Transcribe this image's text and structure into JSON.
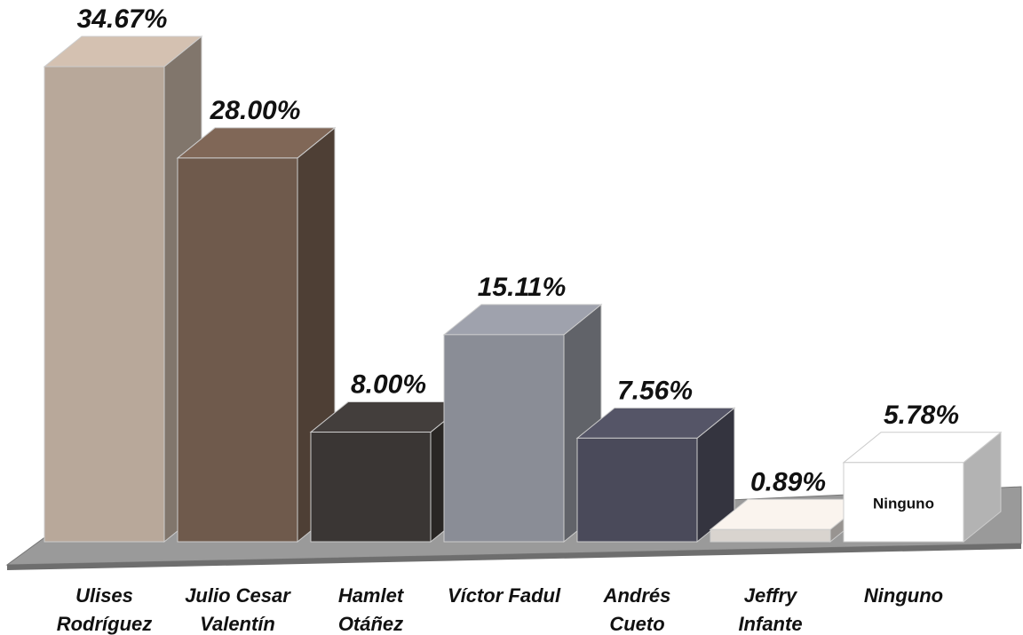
{
  "chart_data": {
    "type": "bar3d",
    "categories": [
      "Ulises\nRodríguez",
      "Julio Cesar\nValentín",
      "Hamlet\nOtáñez",
      "Víctor Fadul",
      "Andrés\nCueto",
      "Jeffry\nInfante",
      "Ninguno"
    ],
    "values": [
      34.67,
      28.0,
      8.0,
      15.11,
      7.56,
      0.89,
      5.78
    ],
    "value_labels": [
      "34.67%",
      "28.00%",
      "8.00%",
      "15.11%",
      "7.56%",
      "0.89%",
      "5.78%"
    ],
    "colors": [
      "#b8a89a",
      "#6f5a4c",
      "#3a3634",
      "#8a8d96",
      "#4a4a5a",
      "#d9d4cf",
      "#ffffff"
    ]
  }
}
